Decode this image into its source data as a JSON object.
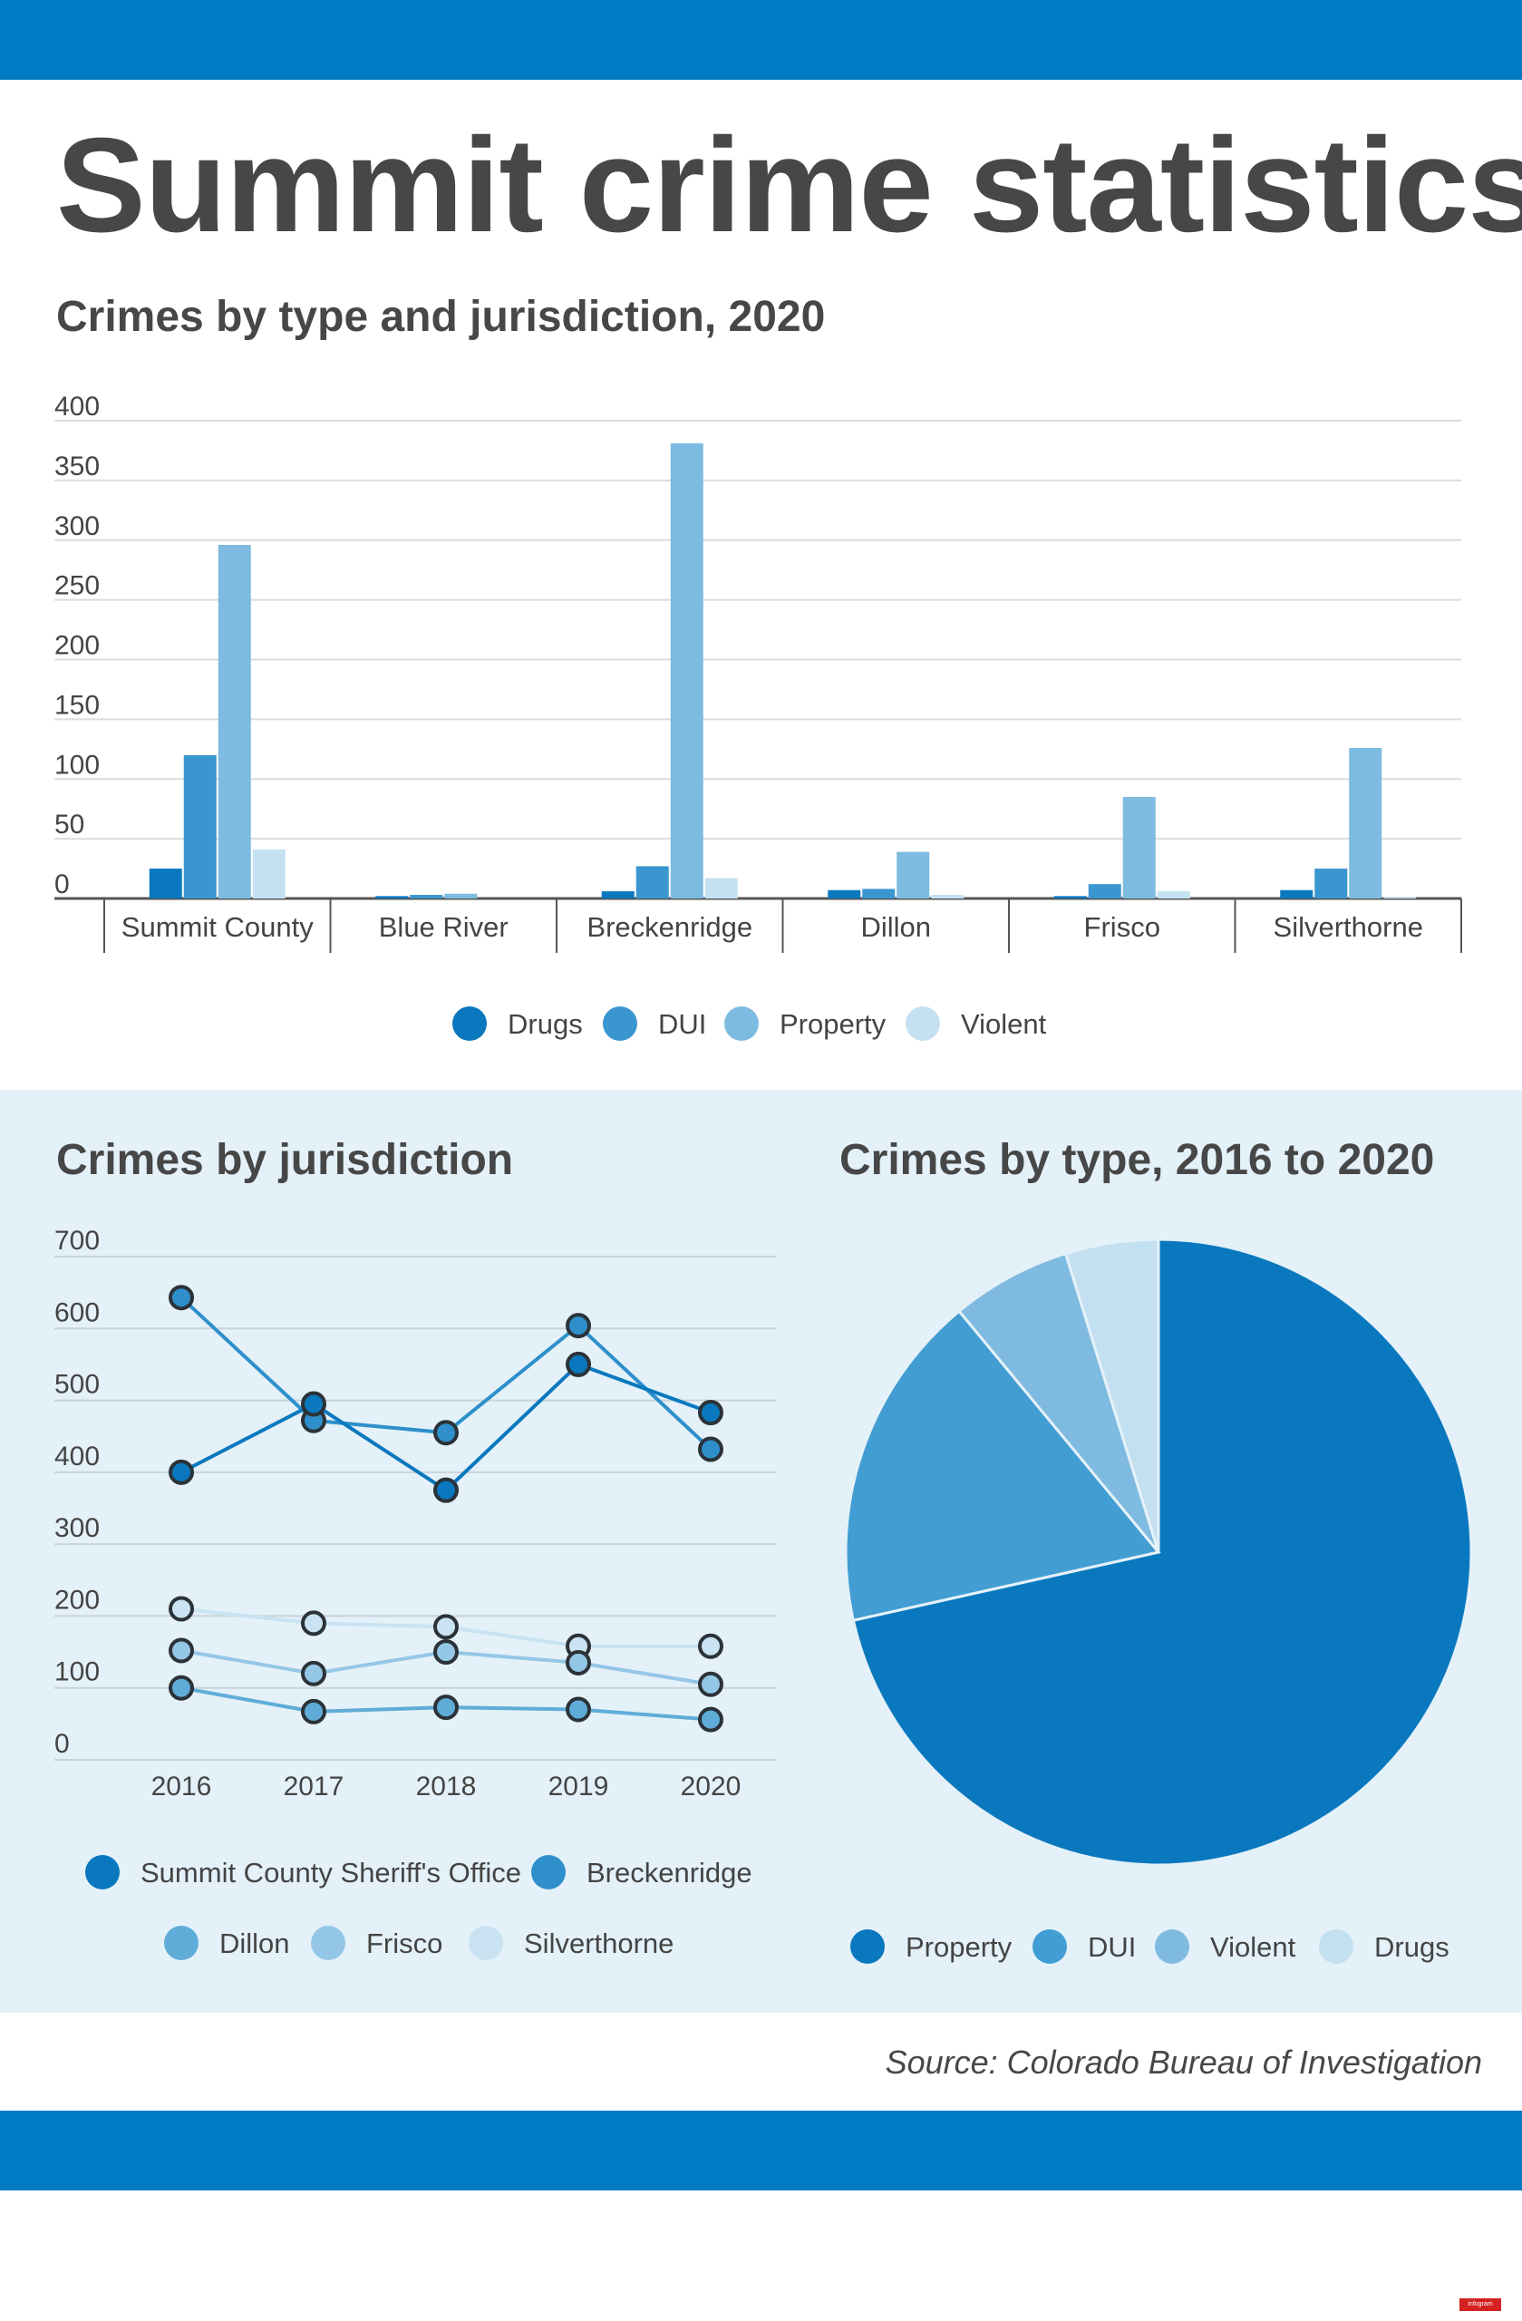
{
  "title": "Summit crime statistics",
  "source": "Source: Colorado Bureau of Investigation",
  "logo_text": "infogram",
  "colors": {
    "band": "#007bc3",
    "panel": "#e4f1f9",
    "series": [
      "#0a78be",
      "#3a96cf",
      "#7dbbe0",
      "#c4e1f1"
    ]
  },
  "chart_data": [
    {
      "type": "bar",
      "title": "Crimes by type and jurisdiction, 2020",
      "categories": [
        "Summit County",
        "Blue River",
        "Breckenridge",
        "Dillon",
        "Frisco",
        "Silverthorne"
      ],
      "series": [
        {
          "name": "Drugs",
          "values": [
            25,
            2,
            6,
            7,
            2,
            7
          ]
        },
        {
          "name": "DUI",
          "values": [
            120,
            3,
            27,
            8,
            12,
            25
          ]
        },
        {
          "name": "Property",
          "values": [
            296,
            4,
            381,
            39,
            85,
            126
          ]
        },
        {
          "name": "Violent",
          "values": [
            41,
            0,
            17,
            3,
            6,
            1
          ]
        }
      ],
      "yticks": [
        "0",
        "50",
        "100",
        "150",
        "200",
        "250",
        "300",
        "350",
        "400"
      ],
      "ylim": [
        0,
        400
      ],
      "grid": true,
      "legend": "bottom"
    },
    {
      "type": "line",
      "title": "Crimes by jurisdiction",
      "x": [
        "2016",
        "2017",
        "2018",
        "2019",
        "2020"
      ],
      "series": [
        {
          "name": "Summit County Sheriff's Office",
          "values": [
            400,
            495,
            375,
            550,
            483
          ]
        },
        {
          "name": "Breckenridge",
          "values": [
            643,
            472,
            455,
            604,
            432
          ]
        },
        {
          "name": "Dillon",
          "values": [
            100,
            67,
            73,
            70,
            56
          ]
        },
        {
          "name": "Frisco",
          "values": [
            152,
            120,
            150,
            135,
            105
          ]
        },
        {
          "name": "Silverthorne",
          "values": [
            210,
            190,
            185,
            158,
            158
          ]
        }
      ],
      "yticks": [
        "0",
        "100",
        "200",
        "300",
        "400",
        "500",
        "600",
        "700"
      ],
      "ylim": [
        0,
        700
      ],
      "grid": true,
      "legend": "bottom"
    },
    {
      "type": "pie",
      "title": "Crimes by type, 2016 to 2020",
      "labels": [
        "Property",
        "DUI",
        "Violent",
        "Drugs"
      ],
      "values": [
        71.5,
        17.5,
        6.2,
        4.8
      ],
      "legend": "bottom"
    }
  ]
}
